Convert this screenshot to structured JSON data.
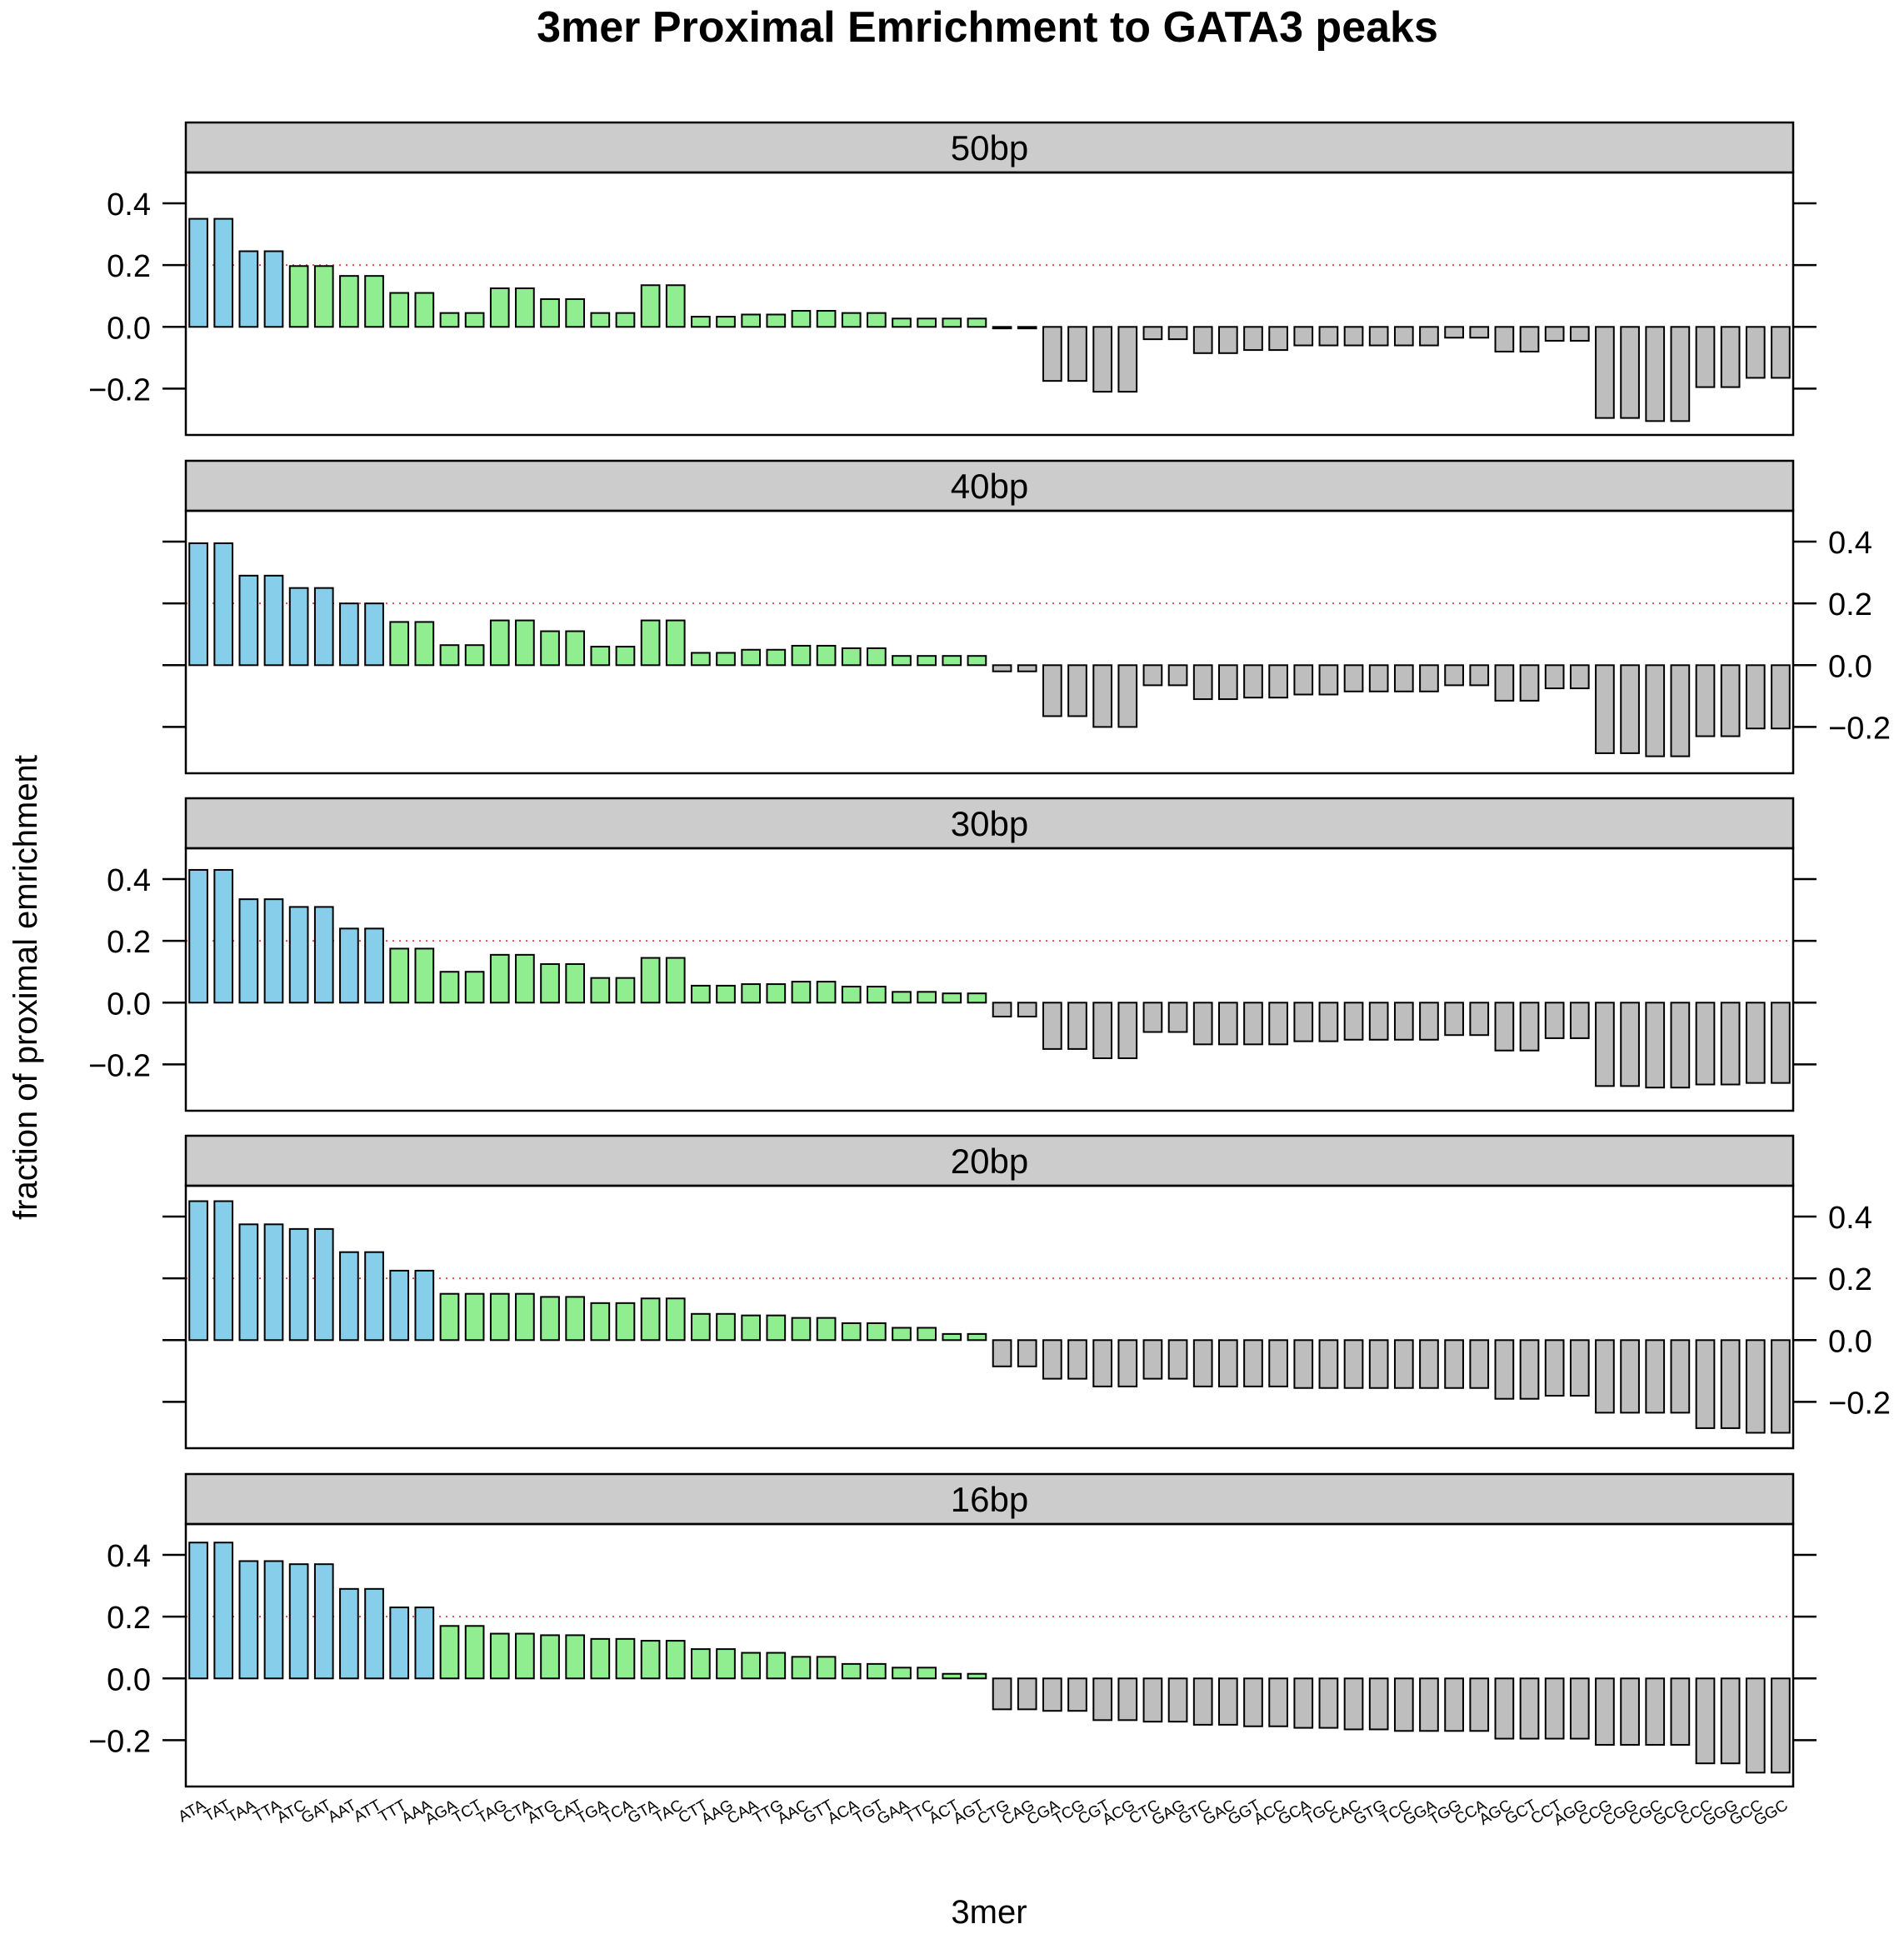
{
  "chart_data": {
    "type": "bar",
    "title": "3mer Proximal Emrichment to GATA3 peaks",
    "xlabel": "3mer",
    "ylabel": "fraction of proximal emrichment",
    "ylim": [
      -0.35,
      0.5
    ],
    "yticks": [
      -0.2,
      0.0,
      0.2,
      0.4
    ],
    "ytick_labels": [
      "−0.2",
      "0.0",
      "0.2",
      "0.4"
    ],
    "reference_line": 0.2,
    "grid": false,
    "colors": {
      "blue": "#87ceeb",
      "green": "#90ee90",
      "gray": "#bebebe",
      "strip": "#cccccc",
      "reference_line": "#e05050",
      "bar_border": "#000000"
    },
    "categories": [
      "ATA",
      "TAT",
      "TAA",
      "TTA",
      "ATC",
      "GAT",
      "AAT",
      "ATT",
      "TTT",
      "AAA",
      "AGA",
      "TCT",
      "TAG",
      "CTA",
      "ATG",
      "CAT",
      "TGA",
      "TCA",
      "GTA",
      "TAC",
      "CTT",
      "AAG",
      "CAA",
      "TTG",
      "AAC",
      "GTT",
      "ACA",
      "TGT",
      "GAA",
      "TTC",
      "ACT",
      "AGT",
      "CTG",
      "CAG",
      "CGA",
      "TCG",
      "CGT",
      "ACG",
      "CTC",
      "GAG",
      "GTC",
      "GAC",
      "GGT",
      "ACC",
      "GCA",
      "TGC",
      "CAC",
      "GTG",
      "TCC",
      "GGA",
      "TGG",
      "CCA",
      "AGC",
      "GCT",
      "CCT",
      "AGG",
      "CCG",
      "CGG",
      "CGC",
      "GCG",
      "CCC",
      "GGG",
      "GCC",
      "GGC"
    ],
    "panels": [
      {
        "name": "50bp",
        "values": [
          0.35,
          0.35,
          0.245,
          0.245,
          0.197,
          0.197,
          0.165,
          0.165,
          0.11,
          0.11,
          0.045,
          0.045,
          0.125,
          0.125,
          0.09,
          0.09,
          0.045,
          0.045,
          0.135,
          0.135,
          0.033,
          0.033,
          0.04,
          0.04,
          0.052,
          0.052,
          0.045,
          0.045,
          0.027,
          0.027,
          0.027,
          0.027,
          -0.005,
          -0.005,
          -0.175,
          -0.175,
          -0.21,
          -0.21,
          -0.04,
          -0.04,
          -0.085,
          -0.085,
          -0.075,
          -0.075,
          -0.06,
          -0.06,
          -0.06,
          -0.06,
          -0.06,
          -0.06,
          -0.035,
          -0.035,
          -0.08,
          -0.08,
          -0.045,
          -0.045,
          -0.295,
          -0.295,
          -0.305,
          -0.305,
          -0.195,
          -0.195,
          -0.165,
          -0.165
        ],
        "colors": [
          "blue",
          "blue",
          "blue",
          "blue",
          "green",
          "green",
          "green",
          "green",
          "green",
          "green",
          "green",
          "green",
          "green",
          "green",
          "green",
          "green",
          "green",
          "green",
          "green",
          "green",
          "green",
          "green",
          "green",
          "green",
          "green",
          "green",
          "green",
          "green",
          "green",
          "green",
          "green",
          "green",
          "gray",
          "gray",
          "gray",
          "gray",
          "gray",
          "gray",
          "gray",
          "gray",
          "gray",
          "gray",
          "gray",
          "gray",
          "gray",
          "gray",
          "gray",
          "gray",
          "gray",
          "gray",
          "gray",
          "gray",
          "gray",
          "gray",
          "gray",
          "gray",
          "gray",
          "gray",
          "gray",
          "gray",
          "gray",
          "gray",
          "gray",
          "gray"
        ]
      },
      {
        "name": "40bp",
        "values": [
          0.395,
          0.395,
          0.29,
          0.29,
          0.25,
          0.25,
          0.2,
          0.2,
          0.14,
          0.14,
          0.065,
          0.065,
          0.145,
          0.145,
          0.11,
          0.11,
          0.06,
          0.06,
          0.145,
          0.145,
          0.04,
          0.04,
          0.05,
          0.05,
          0.063,
          0.063,
          0.055,
          0.055,
          0.03,
          0.03,
          0.03,
          0.03,
          -0.02,
          -0.02,
          -0.165,
          -0.165,
          -0.2,
          -0.2,
          -0.065,
          -0.065,
          -0.11,
          -0.11,
          -0.105,
          -0.105,
          -0.095,
          -0.095,
          -0.085,
          -0.085,
          -0.085,
          -0.085,
          -0.065,
          -0.065,
          -0.115,
          -0.115,
          -0.075,
          -0.075,
          -0.285,
          -0.285,
          -0.295,
          -0.295,
          -0.23,
          -0.23,
          -0.205,
          -0.205
        ],
        "colors": [
          "blue",
          "blue",
          "blue",
          "blue",
          "blue",
          "blue",
          "blue",
          "blue",
          "green",
          "green",
          "green",
          "green",
          "green",
          "green",
          "green",
          "green",
          "green",
          "green",
          "green",
          "green",
          "green",
          "green",
          "green",
          "green",
          "green",
          "green",
          "green",
          "green",
          "green",
          "green",
          "green",
          "green",
          "gray",
          "gray",
          "gray",
          "gray",
          "gray",
          "gray",
          "gray",
          "gray",
          "gray",
          "gray",
          "gray",
          "gray",
          "gray",
          "gray",
          "gray",
          "gray",
          "gray",
          "gray",
          "gray",
          "gray",
          "gray",
          "gray",
          "gray",
          "gray",
          "gray",
          "gray",
          "gray",
          "gray",
          "gray",
          "gray",
          "gray",
          "gray"
        ]
      },
      {
        "name": "30bp",
        "values": [
          0.43,
          0.43,
          0.335,
          0.335,
          0.31,
          0.31,
          0.24,
          0.24,
          0.175,
          0.175,
          0.1,
          0.1,
          0.155,
          0.155,
          0.125,
          0.125,
          0.08,
          0.08,
          0.145,
          0.145,
          0.055,
          0.055,
          0.06,
          0.06,
          0.068,
          0.068,
          0.052,
          0.052,
          0.035,
          0.035,
          0.03,
          0.03,
          -0.045,
          -0.045,
          -0.15,
          -0.15,
          -0.18,
          -0.18,
          -0.095,
          -0.095,
          -0.135,
          -0.135,
          -0.135,
          -0.135,
          -0.125,
          -0.125,
          -0.12,
          -0.12,
          -0.12,
          -0.12,
          -0.105,
          -0.105,
          -0.155,
          -0.155,
          -0.115,
          -0.115,
          -0.27,
          -0.27,
          -0.275,
          -0.275,
          -0.265,
          -0.265,
          -0.26,
          -0.26
        ],
        "colors": [
          "blue",
          "blue",
          "blue",
          "blue",
          "blue",
          "blue",
          "blue",
          "blue",
          "green",
          "green",
          "green",
          "green",
          "green",
          "green",
          "green",
          "green",
          "green",
          "green",
          "green",
          "green",
          "green",
          "green",
          "green",
          "green",
          "green",
          "green",
          "green",
          "green",
          "green",
          "green",
          "green",
          "green",
          "gray",
          "gray",
          "gray",
          "gray",
          "gray",
          "gray",
          "gray",
          "gray",
          "gray",
          "gray",
          "gray",
          "gray",
          "gray",
          "gray",
          "gray",
          "gray",
          "gray",
          "gray",
          "gray",
          "gray",
          "gray",
          "gray",
          "gray",
          "gray",
          "gray",
          "gray",
          "gray",
          "gray",
          "gray",
          "gray",
          "gray",
          "gray"
        ]
      },
      {
        "name": "20bp",
        "values": [
          0.45,
          0.45,
          0.375,
          0.375,
          0.36,
          0.36,
          0.285,
          0.285,
          0.225,
          0.225,
          0.15,
          0.15,
          0.15,
          0.15,
          0.14,
          0.14,
          0.12,
          0.12,
          0.135,
          0.135,
          0.085,
          0.085,
          0.08,
          0.08,
          0.072,
          0.072,
          0.055,
          0.055,
          0.04,
          0.04,
          0.02,
          0.02,
          -0.085,
          -0.085,
          -0.125,
          -0.125,
          -0.15,
          -0.15,
          -0.125,
          -0.125,
          -0.15,
          -0.15,
          -0.15,
          -0.15,
          -0.155,
          -0.155,
          -0.155,
          -0.155,
          -0.155,
          -0.155,
          -0.155,
          -0.155,
          -0.19,
          -0.19,
          -0.18,
          -0.18,
          -0.235,
          -0.235,
          -0.235,
          -0.235,
          -0.285,
          -0.285,
          -0.3,
          -0.3
        ],
        "colors": [
          "blue",
          "blue",
          "blue",
          "blue",
          "blue",
          "blue",
          "blue",
          "blue",
          "blue",
          "blue",
          "green",
          "green",
          "green",
          "green",
          "green",
          "green",
          "green",
          "green",
          "green",
          "green",
          "green",
          "green",
          "green",
          "green",
          "green",
          "green",
          "green",
          "green",
          "green",
          "green",
          "green",
          "green",
          "gray",
          "gray",
          "gray",
          "gray",
          "gray",
          "gray",
          "gray",
          "gray",
          "gray",
          "gray",
          "gray",
          "gray",
          "gray",
          "gray",
          "gray",
          "gray",
          "gray",
          "gray",
          "gray",
          "gray",
          "gray",
          "gray",
          "gray",
          "gray",
          "gray",
          "gray",
          "gray",
          "gray",
          "gray",
          "gray",
          "gray",
          "gray"
        ]
      },
      {
        "name": "16bp",
        "values": [
          0.44,
          0.44,
          0.38,
          0.38,
          0.37,
          0.37,
          0.29,
          0.29,
          0.23,
          0.23,
          0.17,
          0.17,
          0.145,
          0.145,
          0.14,
          0.14,
          0.128,
          0.128,
          0.122,
          0.122,
          0.095,
          0.095,
          0.083,
          0.083,
          0.07,
          0.07,
          0.047,
          0.047,
          0.035,
          0.035,
          0.015,
          0.015,
          -0.1,
          -0.1,
          -0.105,
          -0.105,
          -0.135,
          -0.135,
          -0.14,
          -0.14,
          -0.15,
          -0.15,
          -0.155,
          -0.155,
          -0.16,
          -0.16,
          -0.165,
          -0.165,
          -0.17,
          -0.17,
          -0.17,
          -0.17,
          -0.195,
          -0.195,
          -0.195,
          -0.195,
          -0.215,
          -0.215,
          -0.215,
          -0.215,
          -0.275,
          -0.275,
          -0.305,
          -0.305
        ],
        "colors": [
          "blue",
          "blue",
          "blue",
          "blue",
          "blue",
          "blue",
          "blue",
          "blue",
          "blue",
          "blue",
          "green",
          "green",
          "green",
          "green",
          "green",
          "green",
          "green",
          "green",
          "green",
          "green",
          "green",
          "green",
          "green",
          "green",
          "green",
          "green",
          "green",
          "green",
          "green",
          "green",
          "green",
          "green",
          "gray",
          "gray",
          "gray",
          "gray",
          "gray",
          "gray",
          "gray",
          "gray",
          "gray",
          "gray",
          "gray",
          "gray",
          "gray",
          "gray",
          "gray",
          "gray",
          "gray",
          "gray",
          "gray",
          "gray",
          "gray",
          "gray",
          "gray",
          "gray",
          "gray",
          "gray",
          "gray",
          "gray",
          "gray",
          "gray",
          "gray",
          "gray"
        ]
      }
    ]
  }
}
